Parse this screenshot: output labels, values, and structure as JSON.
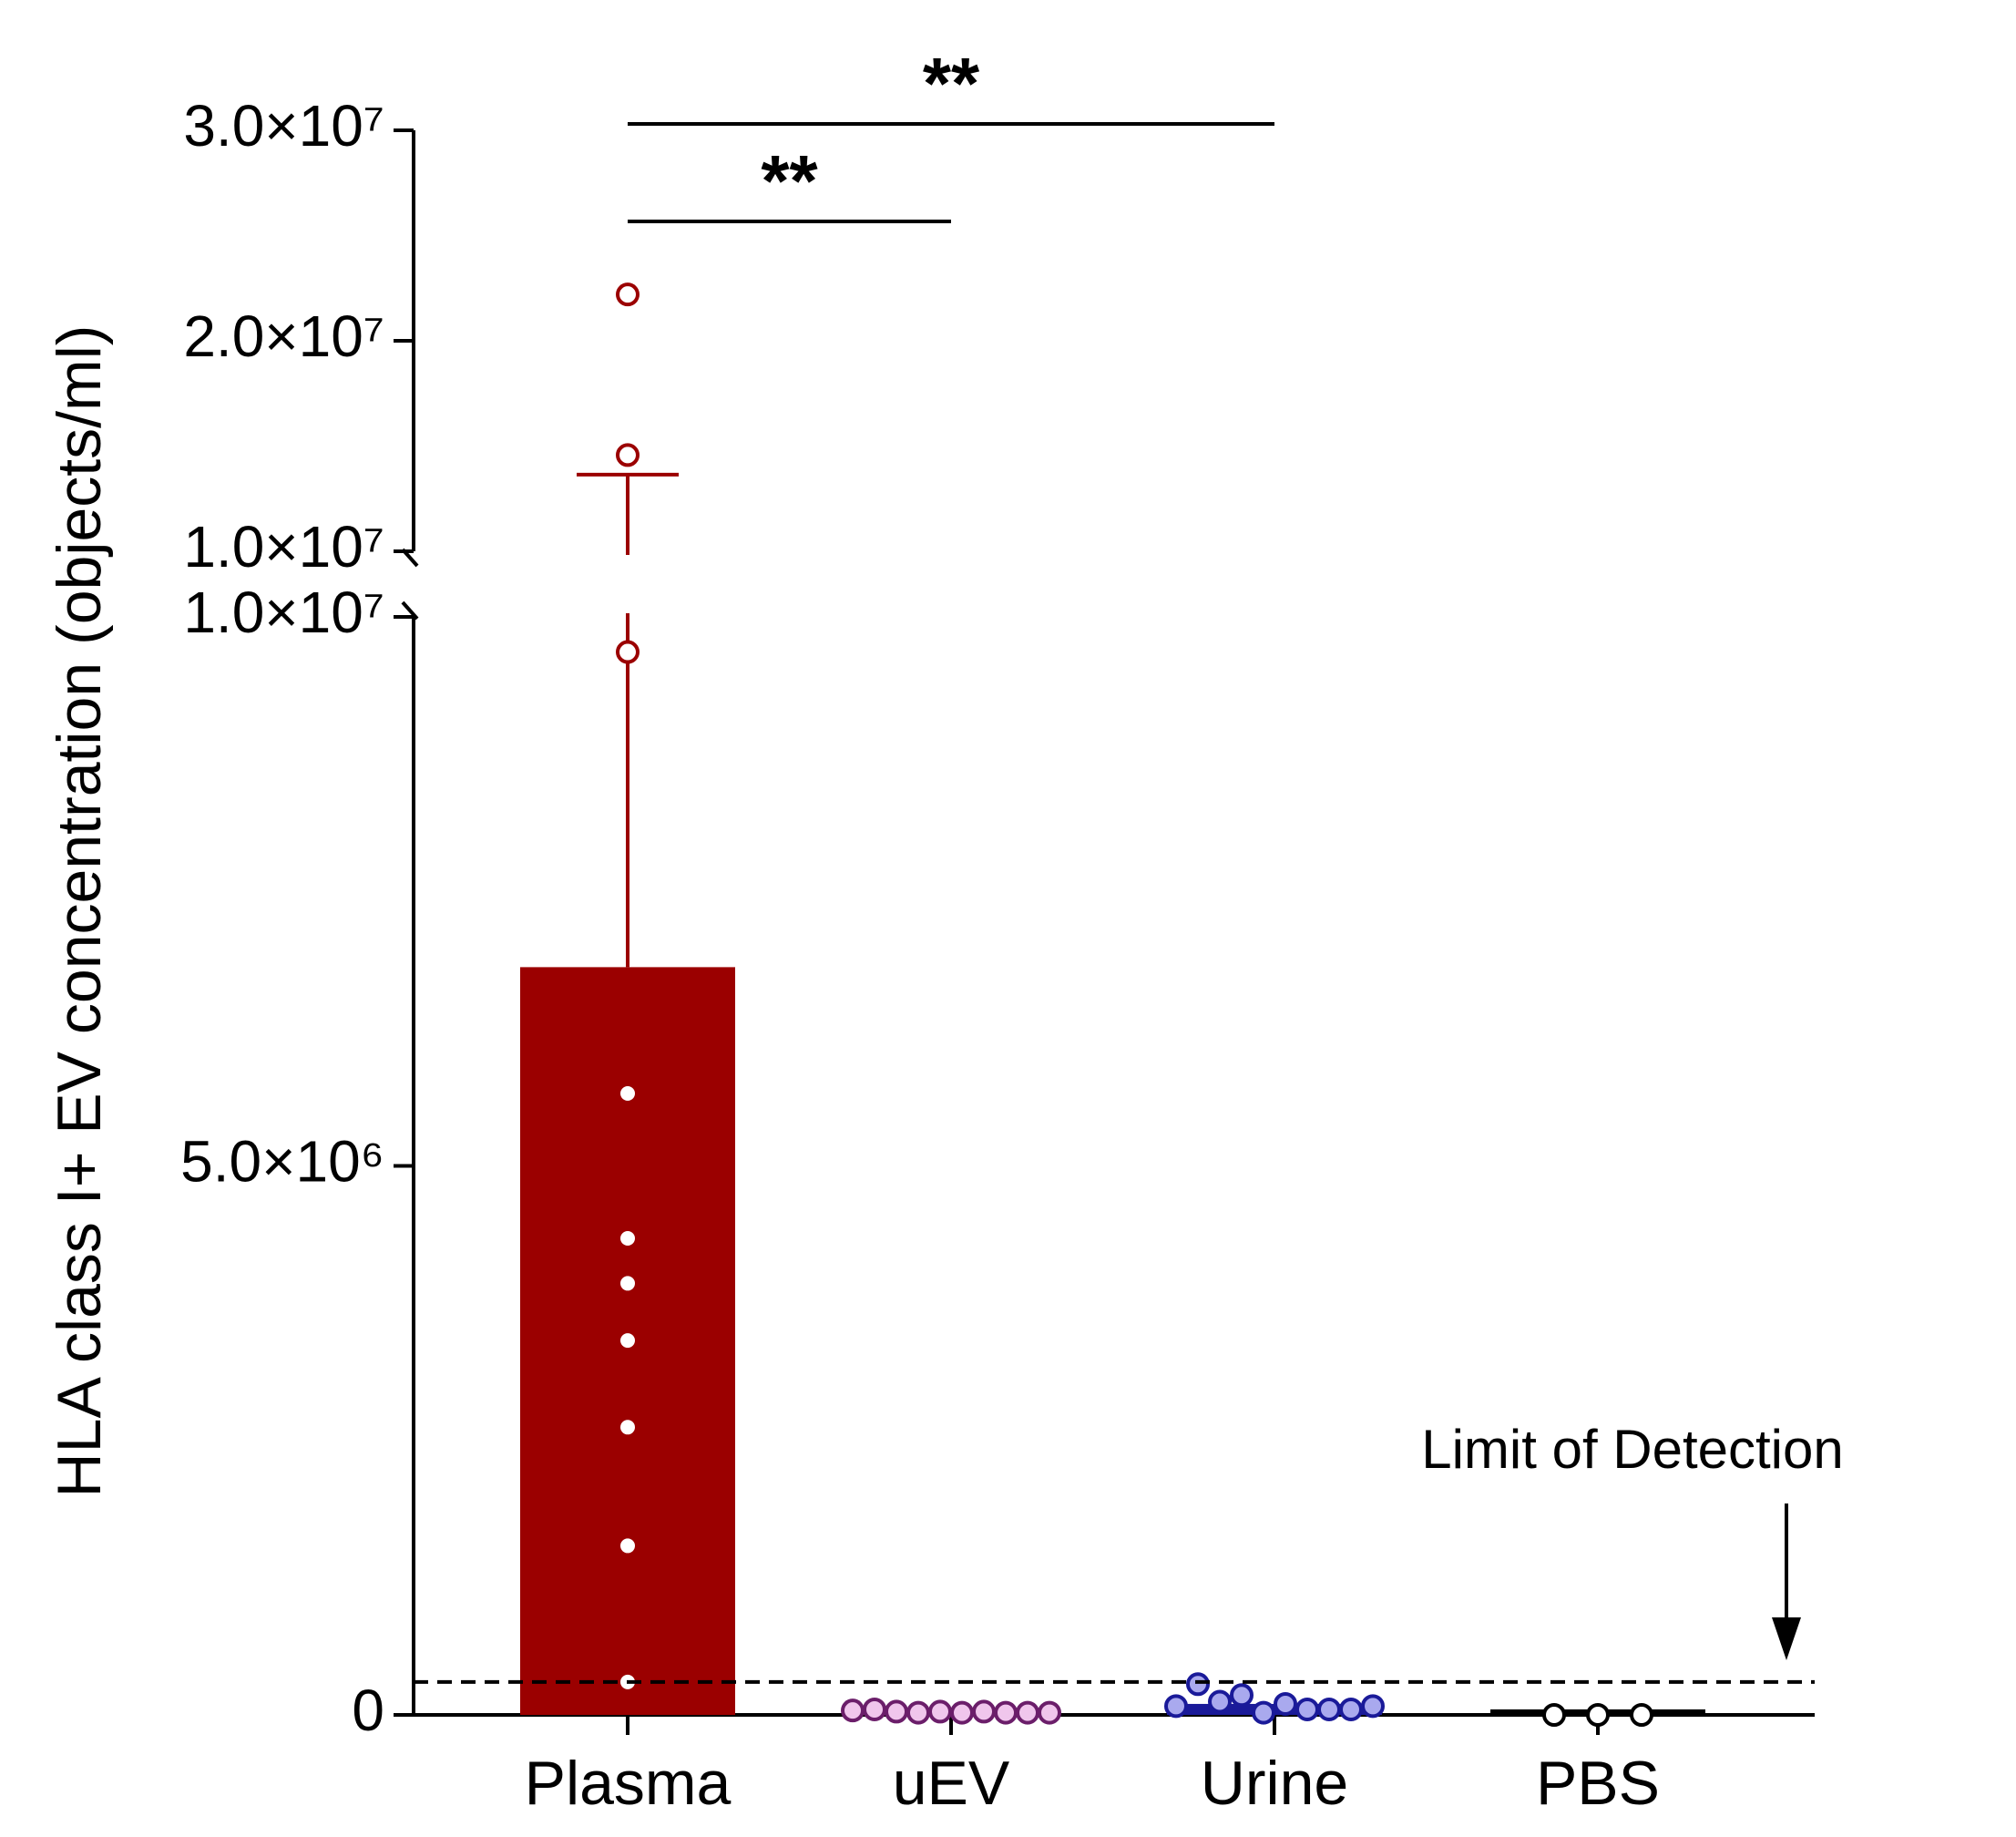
{
  "chart_data": {
    "type": "bar_dot",
    "y_label": "HLA class I+ EV concentration (objects/ml)",
    "categories": [
      "Plasma",
      "uEV",
      "Urine",
      "PBS"
    ],
    "values": [
      6810000,
      30000,
      100000,
      50000
    ],
    "errors": [
      6830000,
      null,
      null,
      null
    ],
    "colors": [
      "#9b0000",
      "#6b1e6a",
      "#1a1a99",
      "#000000"
    ],
    "point_fills": [
      "#ffffff",
      "#f0c6ec",
      "#a9a9ee",
      "#ffffff"
    ],
    "points": [
      [
        22200000,
        14570000,
        9680000,
        5660000,
        4340000,
        3930000,
        3410000,
        2620000,
        1540000,
        300000
      ],
      [
        40000,
        50000,
        30000,
        20000,
        30000,
        20000,
        30000,
        20000,
        20000,
        20000
      ],
      [
        80000,
        280000,
        120000,
        180000,
        20000,
        100000,
        50000,
        50000,
        50000,
        80000
      ],
      [
        0,
        0,
        0
      ]
    ],
    "ylim": [
      0,
      10000000
    ],
    "yticks": [
      {
        "value": 0,
        "label": "0"
      },
      {
        "value": 5000000,
        "label": "5.0×10⁶"
      },
      {
        "value": 10000000,
        "label": "1.0×10⁷"
      }
    ],
    "ylim_upper": [
      10000000,
      30000000
    ],
    "yticks_upper": [
      {
        "value": 10000000,
        "label": "1.0×10⁷"
      },
      {
        "value": 20000000,
        "label": "2.0×10⁷"
      },
      {
        "value": 30000000,
        "label": "3.0×10⁷"
      }
    ],
    "lod": 300000,
    "lod_label": "Limit of Detection",
    "comparisons": [
      {
        "between": [
          "Plasma",
          "uEV"
        ],
        "label": "**"
      },
      {
        "between": [
          "Plasma",
          "Urine"
        ],
        "label": "**"
      }
    ]
  }
}
